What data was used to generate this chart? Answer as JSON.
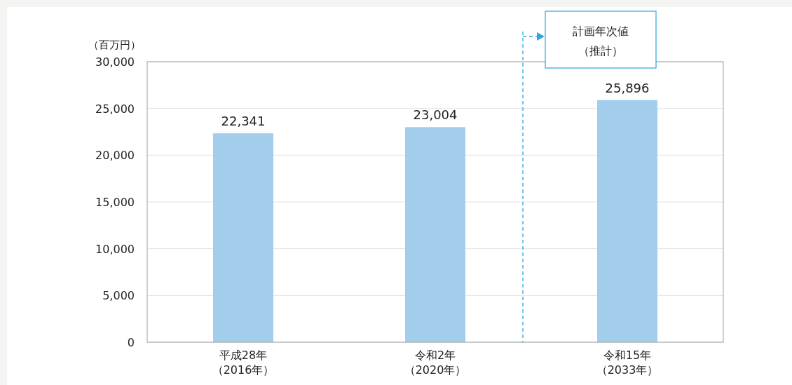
{
  "chart_data": {
    "type": "bar",
    "ylabel": "（百万円）",
    "categories": [
      "平成28年（2016年）",
      "令和2年（2020年）",
      "令和15年（2033年）"
    ],
    "values": [
      22341,
      23004,
      25896
    ],
    "color": "#a3cdec",
    "value_labels": [
      "22,341",
      "23,004",
      "25,896"
    ],
    "ylim": [
      0,
      30000
    ],
    "yticks": [
      {
        "value": 0,
        "label": "0"
      },
      {
        "value": 5000,
        "label": "5,000"
      },
      {
        "value": 10000,
        "label": "10,000"
      },
      {
        "value": 15000,
        "label": "15,000"
      },
      {
        "value": 20000,
        "label": "20,000"
      },
      {
        "value": 25000,
        "label": "25,000"
      },
      {
        "value": 30000,
        "label": "30,000"
      }
    ],
    "grid": "y",
    "ref_lines": [
      {
        "axis": "x",
        "value": "令和15年（2033年）",
        "color": "#2ea6df",
        "line_style": "dashed"
      }
    ],
    "annotations": [
      "計画年次値（推計）"
    ]
  }
}
